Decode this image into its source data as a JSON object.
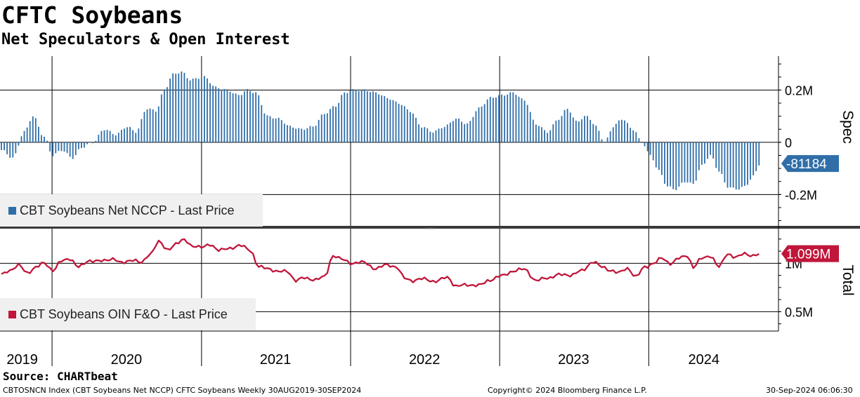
{
  "title": "CFTC Soybeans",
  "subtitle": "Net Speculators & Open Interest",
  "source": "Source: CHARTbeat",
  "footer": {
    "left": "CBTOSNCN Index (CBT Soybeans Net NCCP) CFTC Soybeans  Weekly 30AUG2019-30SEP2024",
    "center": "Copyright© 2024 Bloomberg Finance L.P.",
    "right": "30-Sep-2024 06:06:30"
  },
  "colors": {
    "spec": "#2f6ea8",
    "total": "#c0163a",
    "grid": "#000000"
  },
  "chart_data": [
    {
      "type": "bar",
      "panel": "top",
      "axis_title": "Spec",
      "legend": "CBT Soybeans Net NCCP - Last Price",
      "legend_placement": "bottom-left",
      "y_ticks": [
        {
          "v": 200000,
          "label": "0.2M"
        },
        {
          "v": 0,
          "label": "0"
        },
        {
          "v": -200000,
          "label": "-0.2M"
        }
      ],
      "ylim": [
        -320000,
        330000
      ],
      "last_value": -81184,
      "last_label": "-81184",
      "x_start": "2019-08-30",
      "x_end": "2024-09-30",
      "anchors": [
        [
          "2019-08-30",
          -30000
        ],
        [
          "2019-09-27",
          -60000
        ],
        [
          "2019-10-25",
          40000
        ],
        [
          "2019-11-15",
          100000
        ],
        [
          "2019-12-13",
          20000
        ],
        [
          "2020-01-03",
          -50000
        ],
        [
          "2020-01-24",
          -30000
        ],
        [
          "2020-02-21",
          -60000
        ],
        [
          "2020-03-13",
          -20000
        ],
        [
          "2020-04-10",
          0
        ],
        [
          "2020-05-08",
          50000
        ],
        [
          "2020-06-05",
          30000
        ],
        [
          "2020-07-03",
          60000
        ],
        [
          "2020-07-24",
          40000
        ],
        [
          "2020-08-21",
          130000
        ],
        [
          "2020-09-11",
          120000
        ],
        [
          "2020-10-02",
          200000
        ],
        [
          "2020-10-23",
          260000
        ],
        [
          "2020-11-13",
          270000
        ],
        [
          "2020-12-04",
          240000
        ],
        [
          "2021-01-08",
          250000
        ],
        [
          "2021-02-05",
          210000
        ],
        [
          "2021-03-05",
          200000
        ],
        [
          "2021-04-02",
          180000
        ],
        [
          "2021-04-23",
          200000
        ],
        [
          "2021-05-14",
          190000
        ],
        [
          "2021-06-11",
          100000
        ],
        [
          "2021-07-09",
          90000
        ],
        [
          "2021-08-06",
          60000
        ],
        [
          "2021-09-03",
          50000
        ],
        [
          "2021-10-01",
          60000
        ],
        [
          "2021-10-29",
          110000
        ],
        [
          "2021-11-26",
          140000
        ],
        [
          "2021-12-17",
          190000
        ],
        [
          "2022-01-07",
          200000
        ],
        [
          "2022-02-04",
          200000
        ],
        [
          "2022-03-04",
          190000
        ],
        [
          "2022-04-01",
          170000
        ],
        [
          "2022-04-29",
          150000
        ],
        [
          "2022-05-27",
          120000
        ],
        [
          "2022-06-24",
          60000
        ],
        [
          "2022-07-22",
          40000
        ],
        [
          "2022-08-19",
          60000
        ],
        [
          "2022-09-16",
          90000
        ],
        [
          "2022-10-14",
          70000
        ],
        [
          "2022-11-11",
          130000
        ],
        [
          "2022-12-09",
          170000
        ],
        [
          "2023-01-06",
          180000
        ],
        [
          "2023-02-03",
          190000
        ],
        [
          "2023-03-03",
          160000
        ],
        [
          "2023-03-31",
          70000
        ],
        [
          "2023-04-28",
          40000
        ],
        [
          "2023-05-26",
          90000
        ],
        [
          "2023-06-16",
          130000
        ],
        [
          "2023-07-07",
          80000
        ],
        [
          "2023-08-04",
          100000
        ],
        [
          "2023-08-25",
          60000
        ],
        [
          "2023-09-15",
          0
        ],
        [
          "2023-10-06",
          60000
        ],
        [
          "2023-10-27",
          90000
        ],
        [
          "2023-11-24",
          50000
        ],
        [
          "2023-12-15",
          0
        ],
        [
          "2024-01-05",
          -50000
        ],
        [
          "2024-01-26",
          -110000
        ],
        [
          "2024-02-16",
          -170000
        ],
        [
          "2024-03-08",
          -180000
        ],
        [
          "2024-03-29",
          -150000
        ],
        [
          "2024-04-19",
          -160000
        ],
        [
          "2024-05-10",
          -90000
        ],
        [
          "2024-05-31",
          -50000
        ],
        [
          "2024-06-21",
          -110000
        ],
        [
          "2024-07-12",
          -170000
        ],
        [
          "2024-08-02",
          -180000
        ],
        [
          "2024-08-23",
          -170000
        ],
        [
          "2024-09-13",
          -130000
        ],
        [
          "2024-09-30",
          -81184
        ]
      ]
    },
    {
      "type": "line",
      "panel": "bottom",
      "axis_title": "Total",
      "legend": "CBT Soybeans OIN F&O - Last Price",
      "legend_placement": "bottom-left",
      "y_ticks": [
        {
          "v": 1000000,
          "label": "1M"
        },
        {
          "v": 500000,
          "label": "0.5M"
        }
      ],
      "ylim": [
        300000,
        1350000
      ],
      "last_value": 1099000,
      "last_label": "1.099M",
      "x_start": "2019-08-30",
      "x_end": "2024-09-30",
      "anchors": [
        [
          "2019-08-30",
          880000
        ],
        [
          "2019-09-20",
          930000
        ],
        [
          "2019-10-11",
          980000
        ],
        [
          "2019-11-01",
          900000
        ],
        [
          "2019-11-22",
          960000
        ],
        [
          "2019-12-13",
          1000000
        ],
        [
          "2020-01-03",
          930000
        ],
        [
          "2020-01-24",
          1020000
        ],
        [
          "2020-02-14",
          1050000
        ],
        [
          "2020-03-06",
          960000
        ],
        [
          "2020-04-03",
          1030000
        ],
        [
          "2020-05-01",
          1020000
        ],
        [
          "2020-05-29",
          1050000
        ],
        [
          "2020-06-19",
          1000000
        ],
        [
          "2020-07-17",
          1040000
        ],
        [
          "2020-08-07",
          1000000
        ],
        [
          "2020-08-28",
          1100000
        ],
        [
          "2020-09-18",
          1220000
        ],
        [
          "2020-10-09",
          1140000
        ],
        [
          "2020-10-30",
          1200000
        ],
        [
          "2020-11-20",
          1240000
        ],
        [
          "2020-12-11",
          1180000
        ],
        [
          "2021-01-01",
          1160000
        ],
        [
          "2021-01-22",
          1200000
        ],
        [
          "2021-02-12",
          1130000
        ],
        [
          "2021-03-12",
          1160000
        ],
        [
          "2021-04-09",
          1180000
        ],
        [
          "2021-04-30",
          1140000
        ],
        [
          "2021-05-21",
          960000
        ],
        [
          "2021-06-11",
          950000
        ],
        [
          "2021-07-09",
          910000
        ],
        [
          "2021-07-30",
          920000
        ],
        [
          "2021-08-20",
          820000
        ],
        [
          "2021-09-10",
          850000
        ],
        [
          "2021-10-08",
          830000
        ],
        [
          "2021-10-29",
          860000
        ],
        [
          "2021-11-19",
          1080000
        ],
        [
          "2021-12-10",
          1040000
        ],
        [
          "2022-01-07",
          1000000
        ],
        [
          "2022-02-04",
          1010000
        ],
        [
          "2022-03-04",
          940000
        ],
        [
          "2022-04-01",
          990000
        ],
        [
          "2022-04-22",
          960000
        ],
        [
          "2022-05-13",
          850000
        ],
        [
          "2022-06-03",
          820000
        ],
        [
          "2022-07-01",
          840000
        ],
        [
          "2022-07-29",
          810000
        ],
        [
          "2022-08-26",
          860000
        ],
        [
          "2022-09-16",
          760000
        ],
        [
          "2022-10-14",
          780000
        ],
        [
          "2022-11-11",
          770000
        ],
        [
          "2022-12-09",
          830000
        ],
        [
          "2023-01-06",
          870000
        ],
        [
          "2023-02-03",
          920000
        ],
        [
          "2023-03-03",
          940000
        ],
        [
          "2023-03-31",
          820000
        ],
        [
          "2023-04-28",
          850000
        ],
        [
          "2023-05-26",
          880000
        ],
        [
          "2023-06-23",
          880000
        ],
        [
          "2023-07-21",
          920000
        ],
        [
          "2023-08-18",
          1020000
        ],
        [
          "2023-09-08",
          960000
        ],
        [
          "2023-09-29",
          930000
        ],
        [
          "2023-10-20",
          900000
        ],
        [
          "2023-11-10",
          950000
        ],
        [
          "2023-12-01",
          860000
        ],
        [
          "2023-12-22",
          960000
        ],
        [
          "2024-01-12",
          1000000
        ],
        [
          "2024-02-02",
          1050000
        ],
        [
          "2024-02-23",
          1000000
        ],
        [
          "2024-03-15",
          1050000
        ],
        [
          "2024-04-05",
          1080000
        ],
        [
          "2024-04-19",
          960000
        ],
        [
          "2024-05-10",
          1050000
        ],
        [
          "2024-05-31",
          1080000
        ],
        [
          "2024-06-21",
          960000
        ],
        [
          "2024-07-12",
          1100000
        ],
        [
          "2024-08-02",
          1060000
        ],
        [
          "2024-08-23",
          1100000
        ],
        [
          "2024-09-13",
          1080000
        ],
        [
          "2024-09-30",
          1099000
        ]
      ]
    }
  ],
  "x_axis": {
    "labels": [
      {
        "label": "2019",
        "date": "2019-10-20"
      },
      {
        "label": "2020",
        "date": "2020-07-01"
      },
      {
        "label": "2021",
        "date": "2021-07-01"
      },
      {
        "label": "2022",
        "date": "2022-07-01"
      },
      {
        "label": "2023",
        "date": "2023-07-01"
      },
      {
        "label": "2024",
        "date": "2024-05-15"
      }
    ],
    "year_starts": [
      "2020-01-01",
      "2021-01-01",
      "2022-01-01",
      "2023-01-01",
      "2024-01-01"
    ]
  }
}
